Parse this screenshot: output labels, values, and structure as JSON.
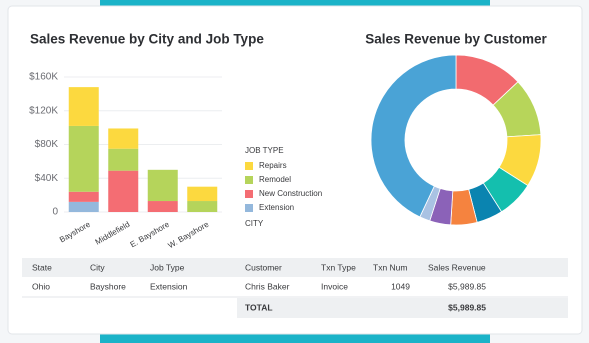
{
  "chart_data": [
    {
      "type": "bar",
      "stacked": true,
      "title": "Sales Revenue by City and Job Type",
      "categories": [
        "Bayshore",
        "Middlefield",
        "E. Bayshore",
        "W. Bayshore"
      ],
      "legend_title": "JOB TYPE",
      "legend_subtitle": "CITY",
      "series": [
        {
          "name": "Repairs",
          "color": "#fcd93f",
          "values": [
            46000,
            24000,
            0,
            17000
          ]
        },
        {
          "name": "Remodel",
          "color": "#b5d45b",
          "values": [
            78000,
            26000,
            37000,
            13000
          ]
        },
        {
          "name": "New Construction",
          "color": "#f46d73",
          "values": [
            12000,
            49000,
            13000,
            0
          ]
        },
        {
          "name": "Extension",
          "color": "#94b8dc",
          "values": [
            12000,
            0,
            0,
            0
          ]
        }
      ],
      "ylim": [
        0,
        160000
      ],
      "yticks": [
        0,
        {
          "value": 40000,
          "label": "$40K"
        },
        {
          "value": 80000,
          "label": "$80K"
        },
        {
          "value": 120000,
          "label": "$120K"
        },
        {
          "value": 160000,
          "label": "$160K"
        }
      ],
      "grid": true
    },
    {
      "type": "donut",
      "title": "Sales Revenue by Customer",
      "values": [
        13,
        11,
        10,
        7,
        5,
        5,
        4,
        2,
        43
      ],
      "colors": [
        "#f26b6f",
        "#b7d55a",
        "#fcd93f",
        "#14bfae",
        "#0a84b0",
        "#f5833f",
        "#8b62b8",
        "#a9c2e3",
        "#4aa3d6"
      ]
    }
  ],
  "table": {
    "columns": [
      "State",
      "City",
      "Job Type",
      "Customer",
      "Txn Type",
      "Txn Num",
      "Sales Revenue"
    ],
    "rows": [
      [
        "Ohio",
        "Bayshore",
        "Extension",
        "Chris Baker",
        "Invoice",
        "1049",
        "$5,989.85"
      ]
    ],
    "total": {
      "label": "TOTAL",
      "value": "$5,989.85"
    }
  }
}
